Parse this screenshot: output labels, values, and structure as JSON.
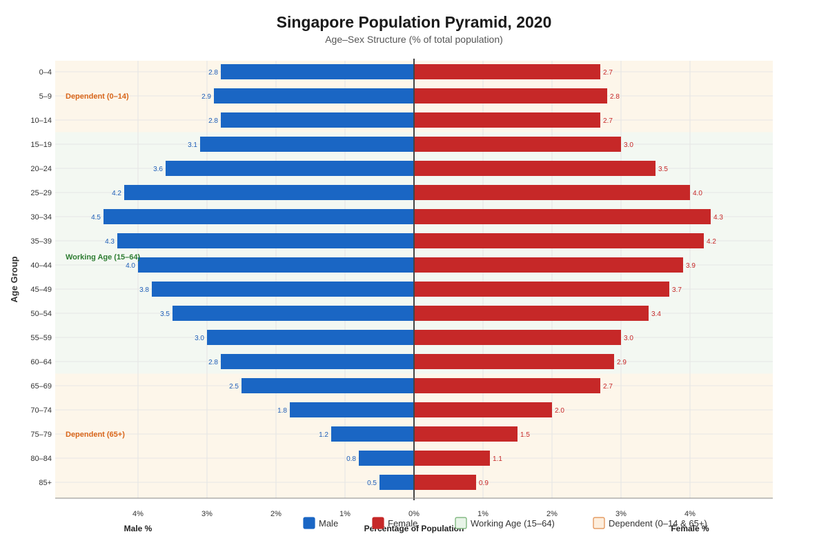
{
  "chart_data": {
    "type": "bar",
    "orientation": "horizontal",
    "title": "Singapore Population Pyramid, 2020",
    "subtitle": "Age–Sex Structure (% of total population)",
    "ylabel": "Age Group",
    "xlabel": "Percentage of Population",
    "xlabel_left": "Male %",
    "xlabel_right": "Female %",
    "x_ticks": [
      "4%",
      "3%",
      "2%",
      "1%",
      "0%",
      "1%",
      "2%",
      "3%",
      "4%"
    ],
    "xlim": [
      -5.2,
      5.2
    ],
    "grid": true,
    "categories": [
      "0–4",
      "5–9",
      "10–14",
      "15–19",
      "20–24",
      "25–29",
      "30–34",
      "35–39",
      "40–44",
      "45–49",
      "50–54",
      "55–59",
      "60–64",
      "65–69",
      "70–74",
      "75–79",
      "80–84",
      "85+"
    ],
    "series": [
      {
        "name": "Male",
        "color": "#1a66c4",
        "values": [
          2.8,
          2.9,
          2.8,
          3.1,
          3.6,
          4.2,
          4.5,
          4.3,
          4.0,
          3.8,
          3.5,
          3.0,
          2.8,
          2.5,
          1.8,
          1.2,
          0.8,
          0.5
        ]
      },
      {
        "name": "Female",
        "color": "#c62828",
        "values": [
          2.7,
          2.8,
          2.7,
          3.0,
          3.5,
          4.0,
          4.3,
          4.2,
          3.9,
          3.7,
          3.4,
          3.0,
          2.9,
          2.7,
          2.0,
          1.5,
          1.1,
          0.9
        ]
      }
    ],
    "bands": [
      {
        "label": "Dependent (0–14)",
        "from": "0–4",
        "to": "10–14",
        "fill": "#fdf6ea",
        "text_color": "#d9661a"
      },
      {
        "label": "Working Age (15–64)",
        "from": "15–19",
        "to": "60–64",
        "fill": "#f3f8f2",
        "text_color": "#2e7d32"
      },
      {
        "label": "Dependent (65+)",
        "from": "65–69",
        "to": "85+",
        "fill": "#fdf6ea",
        "text_color": "#d9661a"
      }
    ],
    "legend": {
      "position": "bottom",
      "items": [
        {
          "label": "Male",
          "swatch": "#1a66c4",
          "border": "#1a66c4"
        },
        {
          "label": "Female",
          "swatch": "#c62828",
          "border": "#c62828"
        },
        {
          "label": "Working Age (15–64)",
          "swatch": "#e8f4e8",
          "border": "#6fae6f"
        },
        {
          "label": "Dependent (0–14 & 65+)",
          "swatch": "#fdeedd",
          "border": "#e08a4a"
        }
      ]
    }
  }
}
